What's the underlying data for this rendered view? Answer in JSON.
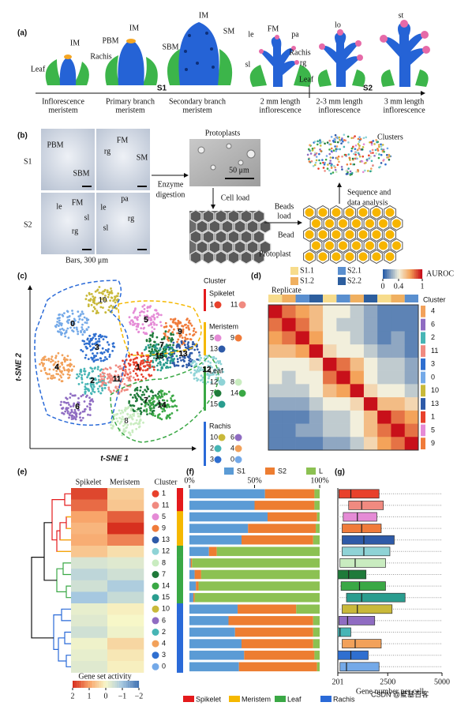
{
  "panel_a": {
    "label": "(a)",
    "annotations": [
      "IM",
      "Leaf",
      "Rachis",
      "PBM",
      "IM",
      "SBM",
      "IM",
      "SM",
      "le",
      "FM",
      "pa",
      "Rachis",
      "sl",
      "rg",
      "Leaf",
      "lo",
      "st"
    ],
    "stage_groups": [
      "S1",
      "S2"
    ],
    "stages": [
      [
        "Inflorescence",
        "meristem"
      ],
      [
        "Primary branch",
        "meristem"
      ],
      [
        "Secondary branch",
        "meristem"
      ],
      [
        "2 mm length",
        "inflorescence"
      ],
      [
        "2-3 mm length",
        "inflorescence"
      ],
      [
        "3 mm length",
        "inflorescence"
      ]
    ]
  },
  "panel_b": {
    "label": "(b)",
    "samples": [
      "S1",
      "S2"
    ],
    "micrograph_labels": [
      "PBM",
      "SBM",
      "FM",
      "rg",
      "SM",
      "le",
      "FM",
      "sl",
      "rg",
      "le",
      "pa",
      "rg",
      "sl"
    ],
    "scale_note": "Bars, 300 μm",
    "enzyme": [
      "Enzyme",
      "digestion"
    ],
    "protoplasts": "Protoplasts",
    "scale_bar": "50 μm",
    "cell_load": "Cell load",
    "beads_load": [
      "Beads",
      "load"
    ],
    "bead": "Bead",
    "protoplast": "Protoplast",
    "clusters": "Clusters",
    "analysis": [
      "Sequence and",
      "data analysis"
    ]
  },
  "panel_c": {
    "label": "(c)",
    "x_label": "t-SNE 1",
    "y_label": "t-SNE 2",
    "legend_title": "Cluster",
    "cluster_colors": {
      "0": "#74a9e8",
      "1": "#e8412c",
      "2": "#47b5b5",
      "3": "#2f6fd0",
      "4": "#f2a15a",
      "5": "#e58bd6",
      "6": "#8f6cc2",
      "7": "#1f7a3a",
      "8": "#c9ecc0",
      "9": "#f07b3a",
      "10": "#c9b93a",
      "11": "#f08a80",
      "12": "#8fd3d6",
      "13": "#2e5aa8",
      "14": "#3aa845",
      "15": "#2a9d8f"
    },
    "groups": [
      {
        "name": "Spikelet",
        "color": "#e41a1c",
        "clusters": [
          "1",
          "11"
        ]
      },
      {
        "name": "Meristem",
        "color": "#f5b800",
        "clusters": [
          "5",
          "9",
          "13"
        ]
      },
      {
        "name": "Leaf",
        "color": "#3aa845",
        "clusters": [
          "12",
          "8",
          "7",
          "14",
          "15"
        ]
      },
      {
        "name": "Rachis",
        "color": "#2a6ad8",
        "clusters": [
          "10",
          "6",
          "2",
          "4",
          "3",
          "0"
        ]
      }
    ],
    "map_labels": [
      "10",
      "0",
      "5",
      "9",
      "3",
      "7",
      "13",
      "15",
      "1",
      "12",
      "4",
      "2",
      "11",
      "6",
      "7",
      "14",
      "8"
    ]
  },
  "chart_data": [
    {
      "type": "heatmap",
      "label": "(d)",
      "title": "AUROC",
      "replicate_title": "Replicate",
      "replicates": [
        {
          "name": "S1.1",
          "color": "#f7dc8c"
        },
        {
          "name": "S2.1",
          "color": "#5a8fcf"
        },
        {
          "name": "S1.2",
          "color": "#f0b060"
        },
        {
          "name": "S2.2",
          "color": "#2d5e9e"
        }
      ],
      "replicate_of_column": [
        0,
        2,
        1,
        3,
        0,
        1,
        2,
        3,
        0,
        2,
        1
      ],
      "legend_title": "Cluster",
      "categories": [
        "4",
        "6",
        "2",
        "11",
        "3",
        "0",
        "10",
        "13",
        "1",
        "5",
        "9"
      ],
      "clim": [
        0,
        1
      ],
      "cticks": [
        0,
        0.4,
        1
      ],
      "values": [
        [
          1,
          0.8,
          0.7,
          0.6,
          0.4,
          0.4,
          0.3,
          0.2,
          0.1,
          0.1,
          0.1
        ],
        [
          0.8,
          1,
          0.8,
          0.6,
          0.4,
          0.3,
          0.3,
          0.2,
          0.1,
          0.1,
          0.1
        ],
        [
          0.7,
          0.8,
          1,
          0.7,
          0.4,
          0.4,
          0.3,
          0.2,
          0.1,
          0.2,
          0.1
        ],
        [
          0.6,
          0.6,
          0.7,
          1,
          0.5,
          0.4,
          0.4,
          0.3,
          0.2,
          0.2,
          0.1
        ],
        [
          0.4,
          0.4,
          0.4,
          0.5,
          1,
          0.8,
          0.6,
          0.4,
          0.3,
          0.3,
          0.2
        ],
        [
          0.4,
          0.3,
          0.4,
          0.4,
          0.8,
          1,
          0.7,
          0.4,
          0.3,
          0.3,
          0.2
        ],
        [
          0.3,
          0.3,
          0.3,
          0.4,
          0.6,
          0.7,
          1,
          0.5,
          0.4,
          0.4,
          0.3
        ],
        [
          0.2,
          0.2,
          0.2,
          0.3,
          0.4,
          0.4,
          0.5,
          1,
          0.6,
          0.6,
          0.5
        ],
        [
          0.1,
          0.1,
          0.1,
          0.2,
          0.3,
          0.3,
          0.4,
          0.6,
          1,
          0.8,
          0.7
        ],
        [
          0.1,
          0.1,
          0.2,
          0.2,
          0.3,
          0.3,
          0.4,
          0.6,
          0.8,
          1,
          0.8
        ],
        [
          0.1,
          0.1,
          0.1,
          0.1,
          0.2,
          0.2,
          0.3,
          0.5,
          0.7,
          0.8,
          1
        ]
      ]
    },
    {
      "type": "heatmap",
      "label": "(e)",
      "columns": [
        "Spikelet",
        "Meristem"
      ],
      "legend_title": "Cluster",
      "colorbar_title": "Gene set activity",
      "categories": [
        "1",
        "11",
        "5",
        "9",
        "13",
        "12",
        "8",
        "7",
        "14",
        "15",
        "10",
        "6",
        "2",
        "4",
        "3",
        "0"
      ],
      "clim": [
        -2,
        2
      ],
      "cticks": [
        2,
        1,
        0,
        {
          "value": -1,
          "label": "−1"
        },
        {
          "value": -2,
          "label": "−2"
        }
      ],
      "values": [
        [
          1.8,
          0.5
        ],
        [
          1.5,
          0.6
        ],
        [
          1.0,
          1.6
        ],
        [
          0.8,
          2.0
        ],
        [
          0.9,
          1.3
        ],
        [
          0.6,
          0.3
        ],
        [
          -0.4,
          -0.3
        ],
        [
          -0.7,
          -0.5
        ],
        [
          -0.5,
          -0.9
        ],
        [
          -1.0,
          -0.6
        ],
        [
          -0.2,
          0.1
        ],
        [
          -0.3,
          0.0
        ],
        [
          -0.5,
          -0.1
        ],
        [
          -0.1,
          0.4
        ],
        [
          -0.2,
          0.2
        ],
        [
          -0.3,
          0.1
        ]
      ]
    },
    {
      "type": "stacked_bar",
      "label": "(f)",
      "categories": [
        "1",
        "11",
        "5",
        "9",
        "13",
        "12",
        "8",
        "7",
        "14",
        "15",
        "10",
        "6",
        "2",
        "4",
        "3",
        "0"
      ],
      "xlim": [
        0,
        100
      ],
      "xticks": [
        {
          "value": 0,
          "label": "0%"
        },
        {
          "value": 50,
          "label": "50%"
        },
        {
          "value": 100,
          "label": "100%"
        }
      ],
      "series": [
        {
          "name": "S1",
          "color": "#5b9bd5",
          "values": [
            58,
            50,
            60,
            45,
            40,
            15,
            1,
            4,
            5,
            3,
            37,
            30,
            35,
            40,
            42,
            38
          ]
        },
        {
          "name": "S2",
          "color": "#ed7d31",
          "values": [
            38,
            46,
            38,
            52,
            55,
            6,
            1,
            5,
            2,
            1,
            45,
            65,
            60,
            55,
            54,
            60
          ]
        },
        {
          "name": "L",
          "color": "#8cc152",
          "values": [
            4,
            4,
            2,
            3,
            5,
            79,
            98,
            91,
            93,
            96,
            18,
            5,
            5,
            5,
            4,
            2
          ]
        }
      ]
    },
    {
      "type": "box",
      "label": "(g)",
      "x_label": "Gene number per cell",
      "categories": [
        "1",
        "11",
        "5",
        "9",
        "13",
        "12",
        "8",
        "7",
        "14",
        "15",
        "10",
        "6",
        "2",
        "4",
        "3",
        "0"
      ],
      "xlim": [
        201,
        5000
      ],
      "xticks": [
        201,
        2500,
        5000
      ],
      "values": [
        [
          201,
          250,
          800,
          2100,
          5000
        ],
        [
          201,
          700,
          1300,
          2300,
          5000
        ],
        [
          201,
          450,
          1100,
          2000,
          5000
        ],
        [
          201,
          400,
          1300,
          2200,
          5000
        ],
        [
          201,
          400,
          1400,
          2800,
          5000
        ],
        [
          201,
          400,
          1400,
          2600,
          5000
        ],
        [
          201,
          300,
          1000,
          2400,
          5000
        ],
        [
          201,
          201,
          700,
          1500,
          5000
        ],
        [
          201,
          350,
          1200,
          2400,
          5000
        ],
        [
          201,
          600,
          1300,
          3300,
          5000
        ],
        [
          201,
          400,
          1100,
          2700,
          5000
        ],
        [
          201,
          250,
          650,
          1900,
          5000
        ],
        [
          201,
          201,
          300,
          800,
          5000
        ],
        [
          201,
          400,
          1000,
          2200,
          5000
        ],
        [
          201,
          201,
          800,
          1600,
          5000
        ],
        [
          201,
          300,
          600,
          2100,
          5000
        ]
      ]
    }
  ],
  "legend": [
    "Spikelet",
    "Meristem",
    "Leaf",
    "Rachis"
  ],
  "watermark": "CSDN @爱基百客"
}
